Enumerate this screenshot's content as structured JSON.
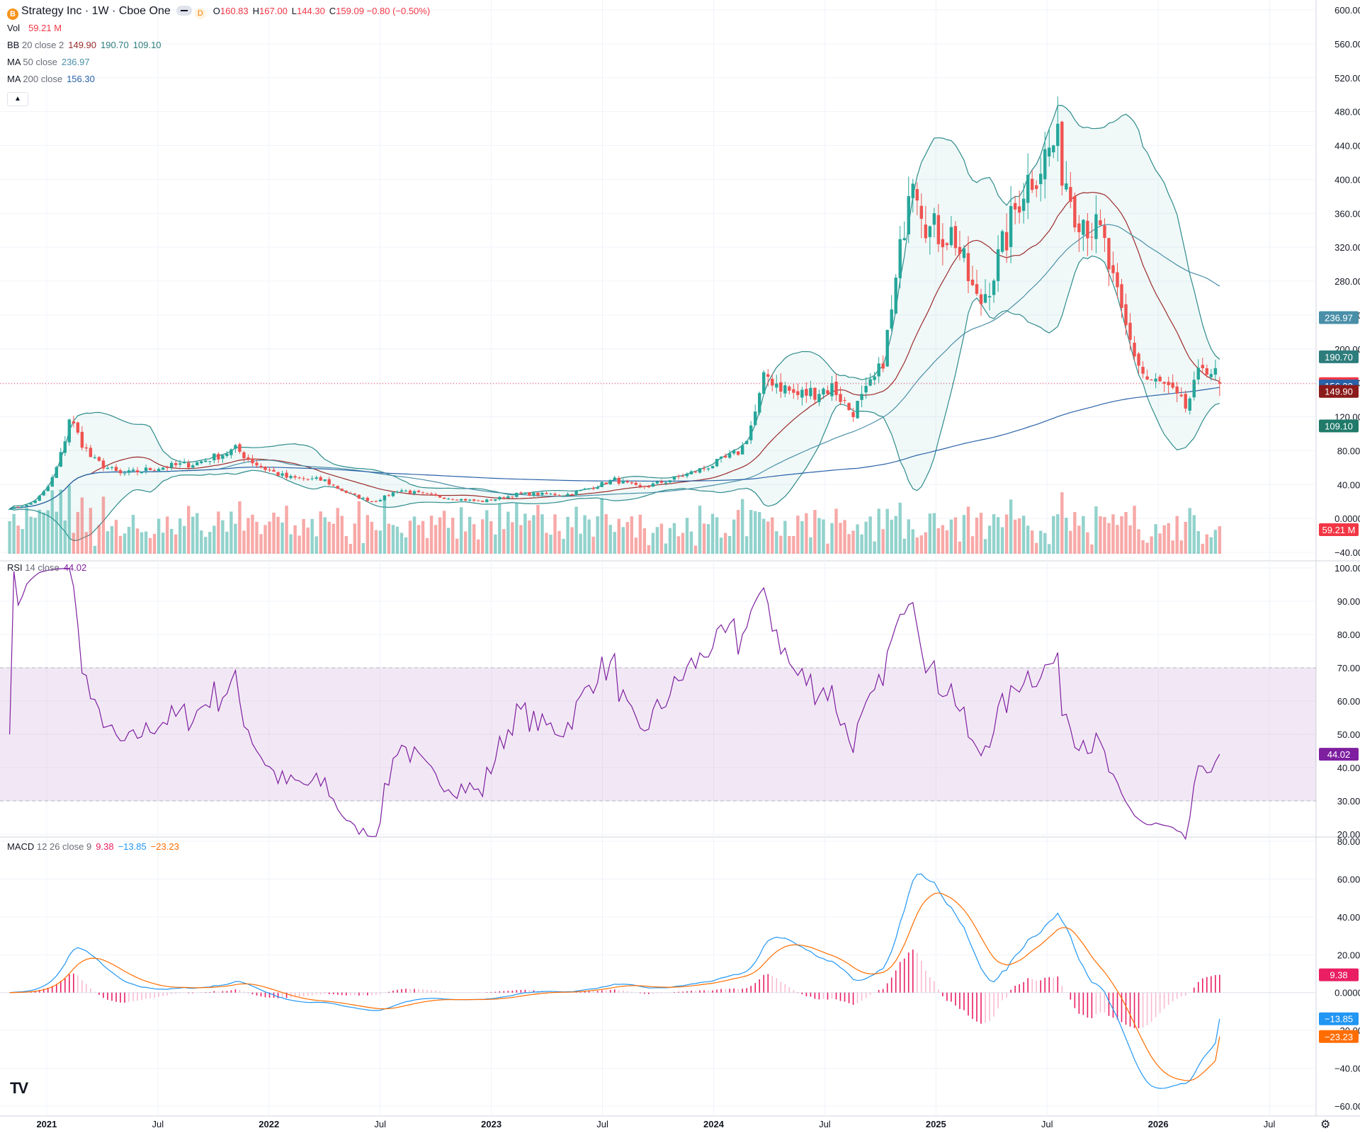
{
  "header": {
    "logo_letter": "B",
    "title": "Strategy Inc · 1W · Cboe One",
    "data_badge": "D",
    "ohlc": [
      {
        "key": "O",
        "value": "160.83"
      },
      {
        "key": "H",
        "value": "167.00"
      },
      {
        "key": "L",
        "value": "144.30"
      },
      {
        "key": "C",
        "value": "159.09 −0.80 (−0.50%)"
      }
    ]
  },
  "legends": {
    "vol": {
      "name": "Vol",
      "args": "",
      "values": [
        {
          "text": "59.21 M",
          "color": "#f23645"
        }
      ]
    },
    "bb": {
      "name": "BB",
      "args": "20 close 2",
      "values": [
        {
          "text": "149.90",
          "color": "#9b2b2b"
        },
        {
          "text": "190.70",
          "color": "#2e7d7d"
        },
        {
          "text": "109.10",
          "color": "#2e7d7d"
        }
      ]
    },
    "ma50": {
      "name": "MA",
      "args": "50 close",
      "values": [
        {
          "text": "236.97",
          "color": "#4a8fa8"
        }
      ]
    },
    "ma200": {
      "name": "MA",
      "args": "200 close",
      "values": [
        {
          "text": "156.30",
          "color": "#2962a8"
        }
      ]
    },
    "rsi": {
      "name": "RSI",
      "args": "14 close",
      "values": [
        {
          "text": "44.02",
          "color": "#7e1fa0"
        }
      ]
    },
    "macd": {
      "name": "MACD",
      "args": "12 26 close 9",
      "values": [
        {
          "text": "9.38",
          "color": "#e91e63"
        },
        {
          "text": "−13.85",
          "color": "#2196f3"
        },
        {
          "text": "−23.23",
          "color": "#ff6d00"
        }
      ]
    }
  },
  "price_axis": {
    "ticks": [
      "600.00",
      "560.00",
      "520.00",
      "480.00",
      "440.00",
      "400.00",
      "360.00",
      "320.00",
      "280.00",
      "240.00",
      "200.00",
      "160.00",
      "120.00",
      "80.00",
      "40.00",
      "0.0000",
      "−40.00"
    ]
  },
  "price_labels": [
    {
      "text": "236.97",
      "value": 236.97,
      "bg": "#4a8fa8"
    },
    {
      "text": "190.70",
      "value": 190.7,
      "bg": "#2e7d7d"
    },
    {
      "text": "159.09",
      "value": 159.09,
      "bg": "#f23645"
    },
    {
      "text": "156.30",
      "value": 156.3,
      "bg": "#2962a8"
    },
    {
      "text": "149.90",
      "value": 149.9,
      "bg": "#8b1a1a"
    },
    {
      "text": "109.10",
      "value": 109.1,
      "bg": "#1f7a6a"
    }
  ],
  "volume_label": {
    "text": "59.21 M",
    "bg": "#f23645"
  },
  "rsi_axis": {
    "ticks": [
      "100.00",
      "90.00",
      "80.00",
      "70.00",
      "60.00",
      "50.00",
      "40.00",
      "30.00",
      "20.00"
    ],
    "label": {
      "text": "44.02",
      "value": 44.02,
      "bg": "#7e1fa0"
    }
  },
  "macd_axis": {
    "ticks": [
      "80.00",
      "60.00",
      "40.00",
      "20.00",
      "0.0000",
      "−20.00",
      "−40.00",
      "−60.00"
    ],
    "labels": [
      {
        "text": "9.38",
        "value": 9.38,
        "bg": "#e91e63"
      },
      {
        "text": "−13.85",
        "value": -13.85,
        "bg": "#2196f3"
      },
      {
        "text": "−23.23",
        "value": -23.23,
        "bg": "#ff6d00"
      }
    ]
  },
  "time_axis": {
    "ticks": [
      {
        "text": "2021",
        "bold": true
      },
      {
        "text": "Jul",
        "bold": false
      },
      {
        "text": "2022",
        "bold": true
      },
      {
        "text": "Jul",
        "bold": false
      },
      {
        "text": "2023",
        "bold": true
      },
      {
        "text": "Jul",
        "bold": false
      },
      {
        "text": "2024",
        "bold": true
      },
      {
        "text": "Jul",
        "bold": false
      },
      {
        "text": "2025",
        "bold": true
      },
      {
        "text": "Jul",
        "bold": false
      },
      {
        "text": "2026",
        "bold": true
      },
      {
        "text": "Jul",
        "bold": false
      }
    ]
  },
  "colors": {
    "up": "#26a69a",
    "down": "#ef5350",
    "grid": "#f0f3fa",
    "axis_text": "#131722"
  },
  "chart_data": [
    {
      "type": "candlestick",
      "title": "Strategy Inc · 1W · Cboe One",
      "x_range": [
        "2020-11",
        "2026-07"
      ],
      "ylim": [
        -40,
        600
      ],
      "anchors_close": [
        [
          "2020-11-01",
          12
        ],
        [
          "2020-12-01",
          16
        ],
        [
          "2021-01-01",
          35
        ],
        [
          "2021-02-08",
          120
        ],
        [
          "2021-03-15",
          70
        ],
        [
          "2021-05-01",
          52
        ],
        [
          "2021-07-01",
          60
        ],
        [
          "2021-09-01",
          65
        ],
        [
          "2021-11-08",
          82
        ],
        [
          "2021-12-15",
          62
        ],
        [
          "2022-02-01",
          48
        ],
        [
          "2022-04-01",
          45
        ],
        [
          "2022-05-15",
          28
        ],
        [
          "2022-06-20",
          20
        ],
        [
          "2022-08-01",
          34
        ],
        [
          "2022-10-01",
          26
        ],
        [
          "2022-12-15",
          20
        ],
        [
          "2023-02-15",
          29
        ],
        [
          "2023-05-01",
          28
        ],
        [
          "2023-07-20",
          46
        ],
        [
          "2023-09-01",
          36
        ],
        [
          "2023-11-01",
          48
        ],
        [
          "2024-01-01",
          64
        ],
        [
          "2024-02-15",
          80
        ],
        [
          "2024-03-25",
          170
        ],
        [
          "2024-05-15",
          145
        ],
        [
          "2024-07-15",
          155
        ],
        [
          "2024-08-15",
          125
        ],
        [
          "2024-10-01",
          175
        ],
        [
          "2024-11-21",
          430
        ],
        [
          "2024-12-20",
          340
        ],
        [
          "2025-02-01",
          335
        ],
        [
          "2025-03-10",
          250
        ],
        [
          "2025-04-20",
          320
        ],
        [
          "2025-05-20",
          390
        ],
        [
          "2025-07-15",
          445
        ],
        [
          "2025-08-15",
          370
        ],
        [
          "2025-10-01",
          330
        ],
        [
          "2025-11-01",
          240
        ],
        [
          "2025-12-10",
          165
        ],
        [
          "2026-01-15",
          155
        ],
        [
          "2026-02-15",
          130
        ],
        [
          "2026-03-15",
          185
        ],
        [
          "2026-04-15",
          159.09
        ]
      ],
      "last_candle": {
        "open": 160.83,
        "high": 167.0,
        "low": 144.3,
        "close": 159.09
      },
      "overlays": {
        "bollinger_20_2": {
          "basis": 149.9,
          "upper": 190.7,
          "lower": 109.1
        },
        "ma_50": 236.97,
        "ma_200": 156.3
      },
      "volume_last": "59.21 M"
    },
    {
      "type": "line",
      "name": "RSI 14 close",
      "ylim": [
        20,
        100
      ],
      "bands": [
        30,
        70
      ],
      "last": 44.02
    },
    {
      "type": "line",
      "name": "MACD 12 26 close 9",
      "ylim": [
        -60,
        80
      ],
      "last": {
        "histogram": 9.38,
        "macd": -13.85,
        "signal": -23.23
      }
    }
  ]
}
